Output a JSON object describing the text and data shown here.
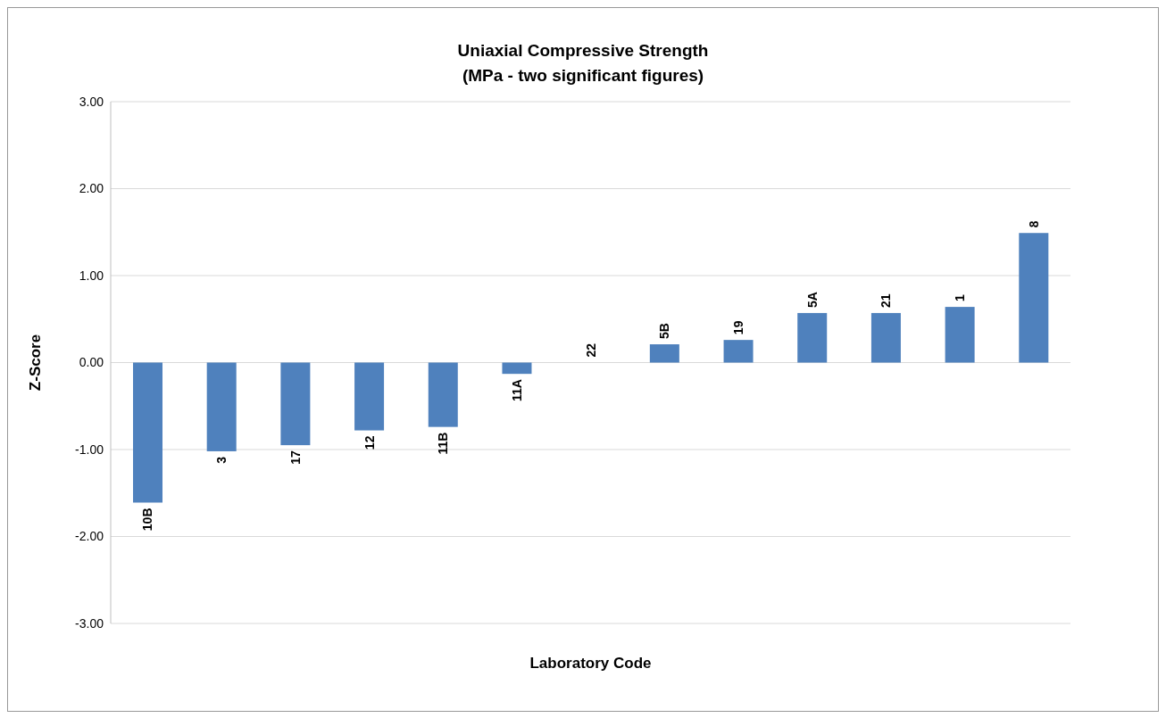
{
  "chart_data": {
    "type": "bar",
    "title": "Uniaxial Compressive Strength\n(MPa - two significant figures)",
    "xlabel": "Laboratory Code",
    "ylabel": "Z-Score",
    "categories": [
      "10B",
      "3",
      "17",
      "12",
      "11B",
      "11A",
      "22",
      "5B",
      "19",
      "5A",
      "21",
      "1",
      "8"
    ],
    "values": [
      -1.61,
      -1.02,
      -0.95,
      -0.78,
      -0.74,
      -0.13,
      0,
      0.21,
      0.26,
      0.57,
      0.57,
      0.64,
      1.49
    ],
    "color": "#4f81bd",
    "ylim": [
      -3,
      3
    ],
    "yticks": [
      {
        "value": -3,
        "label": "-3.00"
      },
      {
        "value": -2,
        "label": "-2.00"
      },
      {
        "value": -1,
        "label": "-1.00"
      },
      {
        "value": 0,
        "label": "0.00"
      },
      {
        "value": 1,
        "label": "1.00"
      },
      {
        "value": 2,
        "label": "2.00"
      },
      {
        "value": 3,
        "label": "3.00"
      }
    ],
    "grid": "y",
    "tick_labels": "y"
  }
}
